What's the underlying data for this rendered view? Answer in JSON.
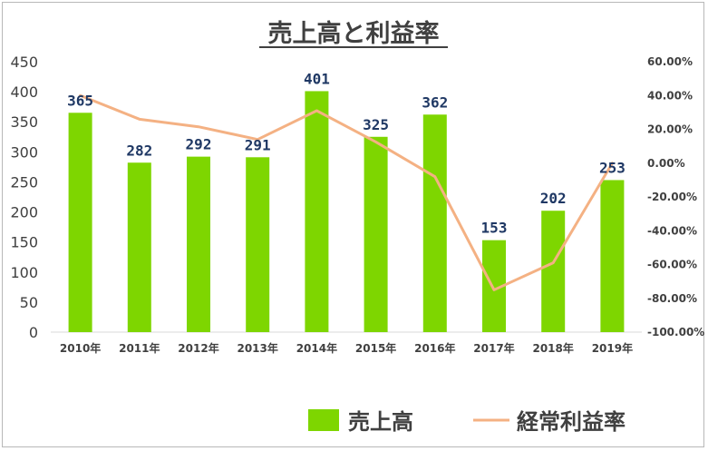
{
  "chart_data": {
    "type": "bar",
    "title": "売上高と利益率",
    "categories": [
      "2010年",
      "2011年",
      "2012年",
      "2013年",
      "2014年",
      "2015年",
      "2016年",
      "2017年",
      "2018年",
      "2019年"
    ],
    "series": [
      {
        "name": "売上高",
        "type": "bar",
        "axis": "left",
        "color": "#7ed600",
        "values": [
          365,
          282,
          292,
          291,
          401,
          325,
          362,
          153,
          202,
          253
        ]
      },
      {
        "name": "経常利益率",
        "type": "line",
        "axis": "right",
        "color": "#f4b183",
        "values": [
          40.0,
          26.0,
          21.5,
          14.0,
          31.0,
          12.5,
          -8.0,
          -75.0,
          -59.0,
          0.0
        ]
      }
    ],
    "y_left": {
      "range": [
        0,
        450
      ],
      "ticks": [
        "0",
        "50",
        "100",
        "150",
        "200",
        "250",
        "300",
        "350",
        "400",
        "450"
      ]
    },
    "y_right": {
      "range": [
        -100,
        60
      ],
      "ticks": [
        "-100.00%",
        "-80.00%",
        "-60.00%",
        "-40.00%",
        "-20.00%",
        "0.00%",
        "20.00%",
        "40.00%",
        "60.00%"
      ]
    },
    "legend": {
      "placement": "bottom"
    },
    "grid": false
  }
}
